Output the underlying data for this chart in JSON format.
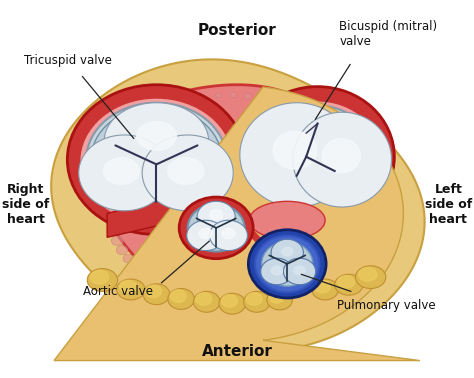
{
  "title_top": "Posterior",
  "title_bottom": "Anterior",
  "label_left": "Right\nside of\nheart",
  "label_right": "Left\nside of\nheart",
  "labels": {
    "tricuspid": "Tricuspid valve",
    "bicuspid": "Bicuspid (mitral)\nvalve",
    "aortic": "Aortic valve",
    "pulmonary": "Pulmonary valve"
  },
  "colors": {
    "background": "#ffffff",
    "outer_fat": "#e8c87a",
    "outer_fat_edge": "#c8a040",
    "heart_pink": "#e88080",
    "heart_pink_light": "#f0a0a0",
    "heart_red": "#cc3333",
    "heart_red_dark": "#aa1111",
    "valve_bg": "#c8d8e0",
    "valve_white": "#e8eef2",
    "valve_bright": "#f5f8fa",
    "valve_shadow": "#a0b8c8",
    "aortic_blue_dark": "#2244aa",
    "aortic_blue": "#4466cc",
    "aortic_blue_light": "#7799dd",
    "connective": "#e8c070",
    "text_color": "#111111",
    "line_color": "#222222"
  },
  "figsize": [
    4.74,
    3.78
  ],
  "dpi": 100
}
